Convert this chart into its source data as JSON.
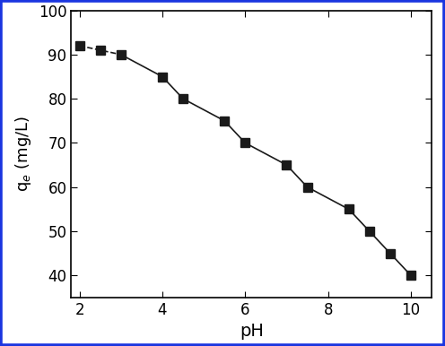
{
  "x": [
    2,
    2.5,
    3,
    4,
    4.5,
    5.5,
    6,
    7,
    7.5,
    8.5,
    9,
    9.5,
    10
  ],
  "y": [
    92,
    91,
    90,
    85,
    80,
    75,
    70,
    65,
    60,
    55,
    50,
    45,
    40
  ],
  "xlabel": "pH",
  "ylabel": "q$_e$ (mg/L)",
  "xlim": [
    1.8,
    10.5
  ],
  "ylim": [
    35,
    100
  ],
  "xticks": [
    2,
    4,
    6,
    8,
    10
  ],
  "yticks": [
    40,
    50,
    60,
    70,
    80,
    90,
    100
  ],
  "marker": "s",
  "marker_color": "#1a1a1a",
  "marker_size": 7,
  "line_color": "#1a1a1a",
  "line_width": 1.2,
  "dashed_segment_end_idx": 2,
  "border_color": "#1a35e0",
  "border_width": 4,
  "background_color": "#ffffff",
  "xlabel_fontsize": 14,
  "ylabel_fontsize": 13,
  "tick_fontsize": 12
}
